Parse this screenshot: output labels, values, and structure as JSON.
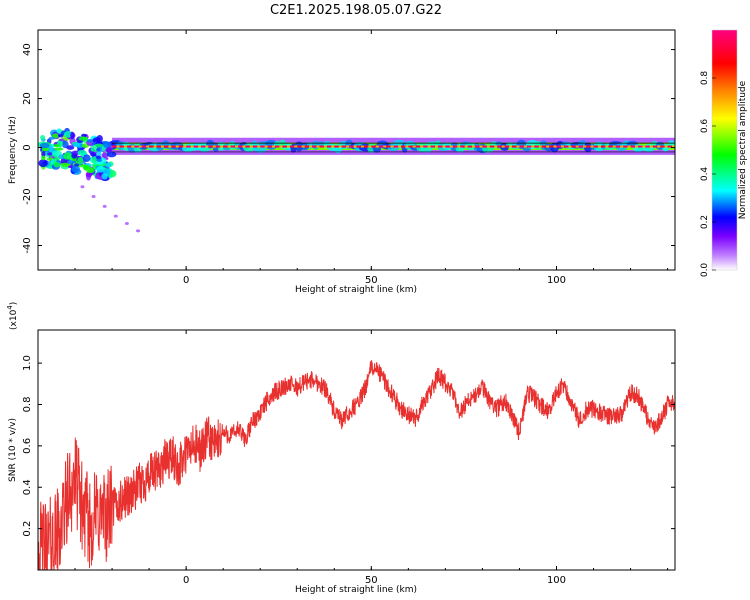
{
  "figure": {
    "title": "C2E1.2025.198.05.07.G22"
  },
  "chart_data": [
    {
      "type": "heatmap",
      "title": "C2E1.2025.198.05.07.G22",
      "xlabel": "Height of straight line (km)",
      "ylabel": "Frequency (Hz)",
      "xlim": [
        -40,
        132
      ],
      "ylim": [
        -50,
        48
      ],
      "x_ticks": [
        "0",
        "50",
        "100"
      ],
      "y_ticks": [
        "40",
        "20",
        "0",
        "-20",
        "-40"
      ],
      "x_tick_values": [
        0,
        50,
        100
      ],
      "y_tick_values": [
        40,
        20,
        0,
        -20,
        -40
      ],
      "grid": false,
      "colorbar": {
        "label": "Normalized spectral amplitude",
        "ticks": [
          "0.0",
          "0.2",
          "0.4",
          "0.6",
          "0.8"
        ],
        "tick_values": [
          0.0,
          0.2,
          0.4,
          0.6,
          0.8
        ],
        "range": [
          0,
          1
        ],
        "colors": [
          "#ffffff",
          "#c080ff",
          "#7a00ff",
          "#0000ff",
          "#00ffff",
          "#00ff00",
          "#ffff00",
          "#ff8000",
          "#ff0000",
          "#ff0080"
        ]
      },
      "dominant_band": {
        "frequency": 0,
        "x_start": -20,
        "x_end": 132,
        "amplitude": 1.0
      },
      "secondary_band": {
        "frequency_low": -1,
        "frequency_high": 2,
        "x_start": -20,
        "x_end": 132,
        "amplitude": 0.55
      },
      "scatter_spread": [
        {
          "x": -37,
          "y_low": -8,
          "y_high": 6,
          "amplitude": 0.45
        },
        {
          "x": -33,
          "y_low": -8,
          "y_high": 7,
          "amplitude": 0.5
        },
        {
          "x": -29,
          "y_low": -10,
          "y_high": 5,
          "amplitude": 0.45
        },
        {
          "x": -25,
          "y_low": -12,
          "y_high": 4,
          "amplitude": 0.4
        },
        {
          "x": -22,
          "y_low": -14,
          "y_high": 3,
          "amplitude": 0.35
        }
      ],
      "tail_points": [
        {
          "x": -28,
          "y": -16
        },
        {
          "x": -25,
          "y": -20
        },
        {
          "x": -22,
          "y": -24
        },
        {
          "x": -19,
          "y": -28
        },
        {
          "x": -16,
          "y": -31
        },
        {
          "x": -13,
          "y": -34
        }
      ]
    },
    {
      "type": "line",
      "xlabel": "Height of straight line (km)",
      "ylabel": "SNR (10 * v/v)",
      "y_multiplier": "(x10",
      "y_multiplier_exp": "4",
      "y_multiplier_close": ")",
      "xlim": [
        -40,
        132
      ],
      "ylim": [
        0,
        1.16
      ],
      "x_ticks": [
        "0",
        "50",
        "100"
      ],
      "y_ticks": [
        "0.2",
        "0.4",
        "0.6",
        "0.8",
        "1.0"
      ],
      "x_tick_values": [
        0,
        50,
        100
      ],
      "y_tick_values": [
        0.2,
        0.4,
        0.6,
        0.8,
        1.0
      ],
      "grid": false,
      "line_color": "#e8302e",
      "series": [
        {
          "x": [
            -40,
            -38,
            -36,
            -34,
            -32,
            -30,
            -28,
            -26,
            -24,
            -22,
            -20,
            -18,
            -16,
            -14,
            -12,
            -10,
            -8,
            -6,
            -4,
            -2,
            0,
            2,
            4,
            6,
            8,
            10,
            12,
            14,
            16,
            18,
            20,
            22,
            24,
            26,
            28,
            30,
            32,
            34,
            36,
            38,
            40,
            42,
            44,
            46,
            48,
            50,
            52,
            54,
            56,
            58,
            60,
            62,
            64,
            66,
            68,
            70,
            72,
            74,
            76,
            78,
            80,
            82,
            84,
            86,
            88,
            90,
            92,
            94,
            96,
            98,
            100,
            102,
            104,
            106,
            108,
            110,
            112,
            114,
            116,
            118,
            120,
            122,
            124,
            126,
            128,
            130,
            132
          ],
          "values": [
            0.1,
            0.12,
            0.14,
            0.2,
            0.35,
            0.45,
            0.3,
            0.22,
            0.28,
            0.25,
            0.3,
            0.32,
            0.36,
            0.38,
            0.42,
            0.45,
            0.47,
            0.52,
            0.55,
            0.5,
            0.56,
            0.6,
            0.58,
            0.64,
            0.6,
            0.66,
            0.65,
            0.68,
            0.63,
            0.72,
            0.76,
            0.82,
            0.86,
            0.88,
            0.9,
            0.88,
            0.91,
            0.92,
            0.9,
            0.87,
            0.76,
            0.72,
            0.76,
            0.8,
            0.86,
            0.98,
            0.96,
            0.9,
            0.84,
            0.78,
            0.75,
            0.73,
            0.81,
            0.86,
            0.94,
            0.9,
            0.85,
            0.76,
            0.82,
            0.84,
            0.88,
            0.82,
            0.78,
            0.82,
            0.76,
            0.66,
            0.86,
            0.83,
            0.79,
            0.76,
            0.86,
            0.9,
            0.8,
            0.73,
            0.77,
            0.78,
            0.76,
            0.74,
            0.75,
            0.76,
            0.86,
            0.84,
            0.76,
            0.68,
            0.72,
            0.8,
            0.8
          ]
        }
      ]
    }
  ]
}
